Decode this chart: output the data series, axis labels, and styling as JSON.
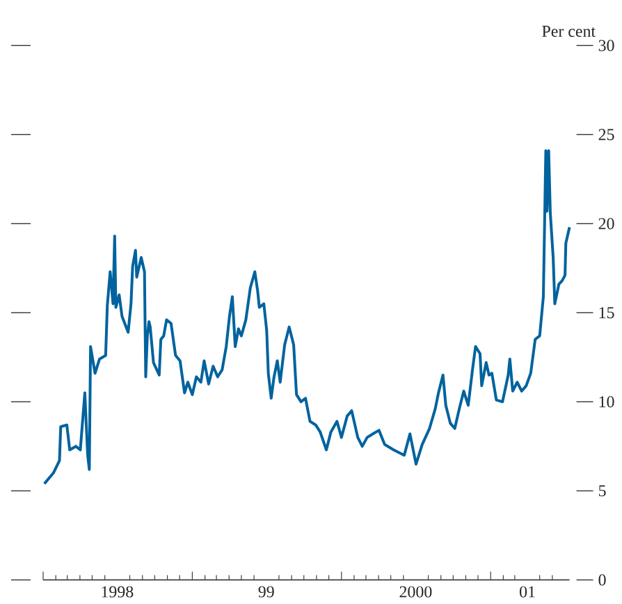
{
  "chart_data": {
    "type": "line",
    "ylabel": "Per cent",
    "color": "#00639e",
    "x": [
      "1998-01-04",
      "1998-01-26",
      "1998-02-10",
      "1998-02-13",
      "1998-02-28",
      "1998-03-07",
      "1998-03-22",
      "1998-04-02",
      "1998-04-13",
      "1998-04-20",
      "1998-04-24",
      "1998-04-27",
      "1998-05-08",
      "1998-05-19",
      "1998-06-03",
      "1998-06-07",
      "1998-06-14",
      "1998-06-21",
      "1998-06-25",
      "1998-06-28",
      "1998-07-06",
      "1998-07-13",
      "1998-07-28",
      "1998-08-04",
      "1998-08-08",
      "1998-08-15",
      "1998-08-18",
      "1998-08-29",
      "1998-09-06",
      "1998-09-09",
      "1998-09-13",
      "1998-09-17",
      "1998-09-20",
      "1998-09-28",
      "1998-10-12",
      "1998-10-16",
      "1998-10-23",
      "1998-10-30",
      "1998-11-10",
      "1998-11-21",
      "1998-12-02",
      "1998-12-13",
      "1998-12-21",
      "1999-01-01",
      "1999-01-11",
      "1999-01-22",
      "1999-01-30",
      "1999-02-10",
      "1999-02-21",
      "1999-03-04",
      "1999-03-15",
      "1999-03-25",
      "1999-04-02",
      "1999-04-09",
      "1999-04-16",
      "1999-04-24",
      "1999-05-01",
      "1999-05-12",
      "1999-05-23",
      "1999-06-03",
      "1999-06-10",
      "1999-06-14",
      "1999-06-25",
      "1999-07-02",
      "1999-07-06",
      "1999-07-13",
      "1999-07-20",
      "1999-07-28",
      "1999-08-04",
      "1999-08-15",
      "1999-08-26",
      "1999-09-06",
      "1999-09-13",
      "1999-09-24",
      "1999-10-05",
      "1999-10-16",
      "1999-10-30",
      "1999-11-10",
      "1999-11-25",
      "1999-12-06",
      "1999-12-21",
      "2000-01-01",
      "2000-01-15",
      "2000-01-26",
      "2000-02-10",
      "2000-02-21",
      "2000-03-04",
      "2000-03-18",
      "2000-04-02",
      "2000-04-16",
      "2000-05-08",
      "2000-06-03",
      "2000-06-17",
      "2000-07-02",
      "2000-07-17",
      "2000-08-04",
      "2000-08-18",
      "2000-08-26",
      "2000-09-06",
      "2000-09-13",
      "2000-09-24",
      "2000-10-05",
      "2000-10-16",
      "2000-10-27",
      "2000-11-07",
      "2000-11-18",
      "2000-11-25",
      "2000-12-06",
      "2000-12-10",
      "2000-12-21",
      "2000-12-28",
      "2001-01-04",
      "2001-01-15",
      "2001-01-30",
      "2001-02-13",
      "2001-02-17",
      "2001-02-24",
      "2001-03-07",
      "2001-03-18",
      "2001-03-29",
      "2001-04-09",
      "2001-04-20",
      "2001-05-01",
      "2001-05-10",
      "2001-05-16",
      "2001-05-19",
      "2001-05-23",
      "2001-05-27",
      "2001-06-03",
      "2001-06-07",
      "2001-06-17",
      "2001-06-25",
      "2001-07-02",
      "2001-07-04",
      "2001-07-13"
    ],
    "values": [
      5.4,
      6.0,
      6.7,
      8.6,
      8.7,
      7.3,
      7.5,
      7.3,
      10.5,
      7.0,
      6.2,
      13.1,
      11.6,
      12.4,
      12.6,
      15.4,
      17.3,
      15.5,
      19.3,
      15.3,
      16.0,
      14.8,
      13.9,
      15.5,
      17.6,
      18.5,
      17.0,
      18.1,
      17.3,
      11.4,
      13.7,
      14.5,
      14.2,
      12.2,
      11.5,
      13.5,
      13.7,
      14.6,
      14.4,
      12.6,
      12.3,
      10.5,
      11.1,
      10.4,
      11.4,
      11.1,
      12.3,
      11.0,
      12.0,
      11.4,
      11.8,
      13.1,
      14.8,
      15.9,
      13.1,
      14.1,
      13.7,
      14.6,
      16.4,
      17.3,
      16.2,
      15.3,
      15.5,
      14.0,
      11.6,
      10.2,
      11.4,
      12.3,
      11.1,
      13.2,
      14.2,
      13.2,
      10.4,
      10.0,
      10.2,
      8.9,
      8.7,
      8.3,
      7.3,
      8.3,
      8.9,
      8.0,
      9.2,
      9.5,
      8.0,
      7.5,
      8.0,
      8.2,
      8.4,
      7.6,
      7.3,
      7.0,
      8.2,
      6.5,
      7.6,
      8.5,
      9.6,
      10.5,
      11.5,
      9.8,
      8.8,
      8.5,
      9.6,
      10.6,
      9.8,
      11.9,
      13.1,
      12.7,
      10.9,
      12.2,
      11.5,
      11.6,
      10.1,
      10.0,
      11.5,
      12.4,
      10.6,
      11.1,
      10.6,
      10.9,
      11.6,
      13.5,
      13.7,
      15.9,
      24.1,
      20.7,
      24.1,
      20.6,
      18.1,
      15.5,
      16.6,
      16.8,
      17.1,
      18.9,
      19.8
    ],
    "xlim": [
      "1998-01-01",
      "2001-07-13"
    ],
    "xticks": [
      {
        "value": "1998-01",
        "label": null
      },
      {
        "value": "1998-02",
        "label": null
      },
      {
        "value": "1998-03",
        "label": null
      },
      {
        "value": "1998-04",
        "label": null
      },
      {
        "value": "1998-05",
        "label": null
      },
      {
        "value": "1998-06",
        "label": null
      },
      {
        "value": "1998-07",
        "label": "1998"
      },
      {
        "value": "1998-08",
        "label": null
      },
      {
        "value": "1998-09",
        "label": null
      },
      {
        "value": "1998-10",
        "label": null
      },
      {
        "value": "1998-11",
        "label": null
      },
      {
        "value": "1998-12",
        "label": null
      },
      {
        "value": "1999-01",
        "label": null
      },
      {
        "value": "1999-02",
        "label": null
      },
      {
        "value": "1999-03",
        "label": null
      },
      {
        "value": "1999-04",
        "label": null
      },
      {
        "value": "1999-05",
        "label": null
      },
      {
        "value": "1999-06",
        "label": null
      },
      {
        "value": "1999-07",
        "label": "99"
      },
      {
        "value": "1999-08",
        "label": null
      },
      {
        "value": "1999-09",
        "label": null
      },
      {
        "value": "1999-10",
        "label": null
      },
      {
        "value": "1999-11",
        "label": null
      },
      {
        "value": "1999-12",
        "label": null
      },
      {
        "value": "2000-01",
        "label": null
      },
      {
        "value": "2000-02",
        "label": null
      },
      {
        "value": "2000-03",
        "label": null
      },
      {
        "value": "2000-04",
        "label": null
      },
      {
        "value": "2000-05",
        "label": null
      },
      {
        "value": "2000-06",
        "label": null
      },
      {
        "value": "2000-07",
        "label": "2000"
      },
      {
        "value": "2000-08",
        "label": null
      },
      {
        "value": "2000-09",
        "label": null
      },
      {
        "value": "2000-10",
        "label": null
      },
      {
        "value": "2000-11",
        "label": null
      },
      {
        "value": "2000-12",
        "label": null
      },
      {
        "value": "2001-01",
        "label": null
      },
      {
        "value": "2001-02",
        "label": null
      },
      {
        "value": "2001-03",
        "label": null
      },
      {
        "value": "2001-04",
        "label": "01"
      },
      {
        "value": "2001-05",
        "label": null
      },
      {
        "value": "2001-06",
        "label": null
      }
    ],
    "ylim": [
      0,
      30
    ],
    "yticks": [
      0,
      5,
      10,
      15,
      20,
      25,
      30
    ]
  }
}
